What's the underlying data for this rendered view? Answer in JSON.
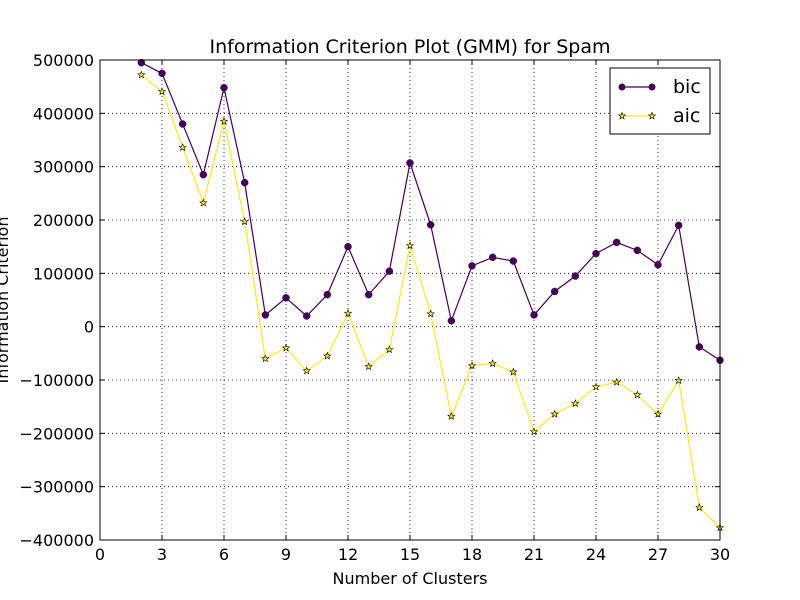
{
  "chart_data": {
    "type": "line",
    "title": "Information Criterion Plot (GMM) for Spam",
    "xlabel": "Number of Clusters",
    "ylabel": "Information Criterion",
    "xlim": [
      0,
      30
    ],
    "ylim": [
      -400000,
      500000
    ],
    "xticks": [
      0,
      3,
      6,
      9,
      12,
      15,
      18,
      21,
      24,
      27,
      30
    ],
    "yticks": [
      -400000,
      -300000,
      -200000,
      -100000,
      0,
      100000,
      200000,
      300000,
      400000,
      500000
    ],
    "grid": true,
    "legend_position": "top-right",
    "x": [
      2,
      3,
      4,
      5,
      6,
      7,
      8,
      9,
      10,
      11,
      12,
      13,
      14,
      15,
      16,
      17,
      18,
      19,
      20,
      21,
      22,
      23,
      24,
      25,
      26,
      27,
      28,
      29,
      30
    ],
    "series": [
      {
        "name": "bic",
        "color": "#440154",
        "marker": "circle",
        "values": [
          495000,
          475000,
          380000,
          285000,
          448000,
          270000,
          22000,
          54000,
          20000,
          60000,
          150000,
          60000,
          104000,
          307000,
          191000,
          11000,
          114000,
          130000,
          123000,
          22000,
          66000,
          95000,
          137000,
          158000,
          143000,
          116000,
          190000,
          -38000,
          -63000
        ]
      },
      {
        "name": "aic",
        "color": "#fde725",
        "marker": "star",
        "values": [
          472000,
          441000,
          336000,
          232000,
          385000,
          197000,
          -60000,
          -40000,
          -83000,
          -55000,
          25000,
          -75000,
          -43000,
          152000,
          24000,
          -168000,
          -73000,
          -69000,
          -85000,
          -197000,
          -164000,
          -144000,
          -113000,
          -104000,
          -128000,
          -164000,
          -101000,
          -339000,
          -377000
        ]
      }
    ]
  }
}
